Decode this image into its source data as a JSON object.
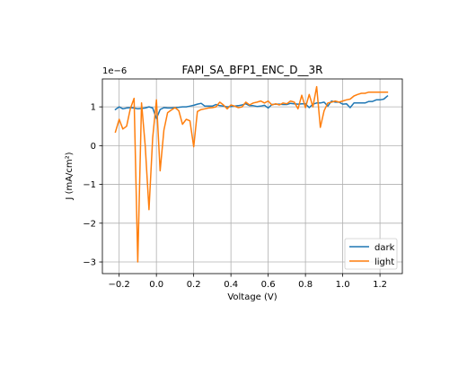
{
  "chart_data": {
    "type": "line",
    "title": "FAPI_SA_BFP1_ENC_D__3R",
    "xlabel": "Voltage (V)",
    "ylabel": "J (mA/cm²)",
    "y_multiplier": "1e−6",
    "xlim": [
      -0.29,
      1.32
    ],
    "ylim": [
      -3.3,
      1.72
    ],
    "xticks": [
      -0.2,
      0.0,
      0.2,
      0.4,
      0.6,
      0.8,
      1.0,
      1.2
    ],
    "xtick_labels": [
      "−0.2",
      "0.0",
      "0.2",
      "0.4",
      "0.6",
      "0.8",
      "1.0",
      "1.2"
    ],
    "yticks": [
      -3,
      -2,
      -1,
      0,
      1
    ],
    "ytick_labels": [
      "−3",
      "−2",
      "−1",
      "0",
      "1"
    ],
    "grid": true,
    "legend_position": "lower-right",
    "series": [
      {
        "name": "dark",
        "color": "#1f77b4",
        "x": [
          -0.22,
          -0.2,
          -0.18,
          -0.16,
          -0.14,
          -0.12,
          -0.1,
          -0.08,
          -0.06,
          -0.04,
          -0.02,
          0.0,
          0.02,
          0.04,
          0.06,
          0.08,
          0.1,
          0.12,
          0.14,
          0.16,
          0.18,
          0.2,
          0.22,
          0.24,
          0.26,
          0.28,
          0.3,
          0.32,
          0.34,
          0.36,
          0.38,
          0.4,
          0.42,
          0.44,
          0.46,
          0.48,
          0.5,
          0.52,
          0.54,
          0.56,
          0.58,
          0.6,
          0.62,
          0.64,
          0.66,
          0.68,
          0.7,
          0.72,
          0.74,
          0.76,
          0.78,
          0.8,
          0.82,
          0.84,
          0.86,
          0.88,
          0.9,
          0.92,
          0.94,
          0.96,
          0.98,
          1.0,
          1.02,
          1.04,
          1.06,
          1.08,
          1.1,
          1.12,
          1.14,
          1.16,
          1.18,
          1.2,
          1.22,
          1.24
        ],
        "y": [
          0.93,
          1.0,
          0.95,
          0.97,
          0.98,
          0.97,
          0.95,
          0.96,
          0.97,
          1.0,
          0.97,
          0.7,
          0.93,
          0.98,
          0.97,
          0.97,
          0.98,
          0.99,
          1.0,
          1.0,
          1.02,
          1.04,
          1.07,
          1.09,
          1.02,
          1.02,
          1.02,
          1.06,
          1.03,
          1.02,
          1.0,
          1.01,
          1.02,
          1.03,
          1.05,
          1.08,
          1.03,
          1.03,
          1.01,
          1.02,
          1.04,
          0.97,
          1.06,
          1.07,
          1.07,
          1.06,
          1.06,
          1.09,
          1.08,
          1.07,
          1.08,
          1.08,
          0.98,
          1.07,
          1.1,
          1.1,
          1.12,
          1.02,
          1.15,
          1.12,
          1.12,
          1.07,
          1.08,
          0.98,
          1.1,
          1.1,
          1.1,
          1.1,
          1.14,
          1.14,
          1.18,
          1.18,
          1.2,
          1.28
        ]
      },
      {
        "name": "light",
        "color": "#ff7f0e",
        "x": [
          -0.22,
          -0.2,
          -0.18,
          -0.16,
          -0.14,
          -0.12,
          -0.1,
          -0.08,
          -0.06,
          -0.04,
          -0.02,
          0.0,
          0.02,
          0.04,
          0.06,
          0.08,
          0.1,
          0.12,
          0.14,
          0.16,
          0.18,
          0.2,
          0.22,
          0.24,
          0.26,
          0.28,
          0.3,
          0.32,
          0.34,
          0.36,
          0.38,
          0.4,
          0.42,
          0.44,
          0.46,
          0.48,
          0.5,
          0.52,
          0.54,
          0.56,
          0.58,
          0.6,
          0.62,
          0.64,
          0.66,
          0.68,
          0.7,
          0.72,
          0.74,
          0.76,
          0.78,
          0.8,
          0.82,
          0.84,
          0.86,
          0.88,
          0.9,
          0.92,
          0.94,
          0.96,
          0.98,
          1.0,
          1.02,
          1.04,
          1.06,
          1.08,
          1.1,
          1.12,
          1.14,
          1.16,
          1.18,
          1.2,
          1.22,
          1.24
        ],
        "y": [
          0.35,
          0.68,
          0.43,
          0.5,
          0.95,
          1.22,
          -3.0,
          1.1,
          0.0,
          -1.65,
          0.2,
          1.18,
          -0.65,
          0.4,
          0.85,
          0.92,
          0.98,
          0.9,
          0.55,
          0.68,
          0.64,
          -0.03,
          0.88,
          0.93,
          0.95,
          0.97,
          0.98,
          1.0,
          1.12,
          1.05,
          0.95,
          1.05,
          1.02,
          0.98,
          1.0,
          1.12,
          1.05,
          1.1,
          1.12,
          1.15,
          1.1,
          1.15,
          1.05,
          1.08,
          1.05,
          1.1,
          1.08,
          1.15,
          1.12,
          0.95,
          1.3,
          0.98,
          1.32,
          1.0,
          1.52,
          0.47,
          0.9,
          1.1,
          1.12,
          1.15,
          1.12,
          1.15,
          1.18,
          1.2,
          1.28,
          1.32,
          1.35,
          1.35,
          1.38,
          1.38,
          1.38,
          1.38,
          1.38,
          1.38
        ]
      }
    ]
  }
}
